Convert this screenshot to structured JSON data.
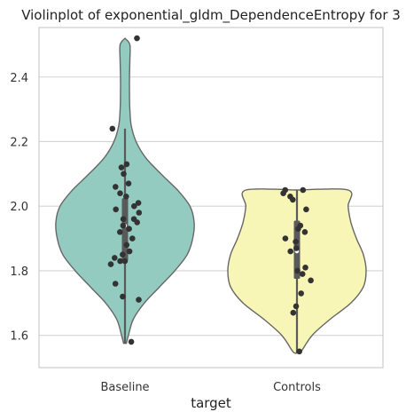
{
  "chart_data": {
    "type": "violin",
    "title": "Violinplot of exponential_gldm_DependenceEntropy for 3",
    "xlabel": "target",
    "ylabel": "",
    "categories": [
      "Baseline",
      "Controls"
    ],
    "ylim": [
      1.5,
      2.6
    ],
    "yticks": [
      1.6,
      1.8,
      2.0,
      2.2,
      2.4
    ],
    "yticklabels": [
      "1.6",
      "1.8",
      "2.0",
      "2.2",
      "2.4"
    ],
    "grid": "horizontal",
    "colors": {
      "Baseline": "#93cbc1",
      "Controls": "#f8f6b7",
      "outline": "#666666",
      "points": "#333333",
      "box": "#5a5a5a",
      "grid": "#d4d4d4",
      "frame": "#cccccc"
    },
    "series": [
      {
        "category": "Baseline",
        "points": [
          2.52,
          2.24,
          2.13,
          2.12,
          2.1,
          2.07,
          2.06,
          2.04,
          2.03,
          2.01,
          2.0,
          1.99,
          1.98,
          1.96,
          1.96,
          1.95,
          1.94,
          1.93,
          1.92,
          1.9,
          1.88,
          1.86,
          1.85,
          1.84,
          1.83,
          1.83,
          1.82,
          1.76,
          1.72,
          1.71,
          1.58
        ],
        "box": {
          "whisker_low": 1.575,
          "q1": 1.83,
          "median": 1.94,
          "q3": 2.025,
          "whisker_high": 2.24
        },
        "density": [
          [
            1.575,
            0.02
          ],
          [
            1.6,
            0.05
          ],
          [
            1.65,
            0.12
          ],
          [
            1.7,
            0.28
          ],
          [
            1.75,
            0.5
          ],
          [
            1.8,
            0.72
          ],
          [
            1.85,
            0.9
          ],
          [
            1.9,
            0.98
          ],
          [
            1.95,
            1.0
          ],
          [
            2.0,
            0.94
          ],
          [
            2.05,
            0.76
          ],
          [
            2.1,
            0.52
          ],
          [
            2.15,
            0.3
          ],
          [
            2.2,
            0.16
          ],
          [
            2.25,
            0.09
          ],
          [
            2.3,
            0.07
          ],
          [
            2.35,
            0.065
          ],
          [
            2.4,
            0.065
          ],
          [
            2.45,
            0.07
          ],
          [
            2.5,
            0.07
          ],
          [
            2.52,
            0.0
          ]
        ]
      },
      {
        "category": "Controls",
        "points": [
          2.05,
          2.05,
          2.04,
          2.03,
          2.02,
          1.99,
          1.94,
          1.93,
          1.92,
          1.9,
          1.89,
          1.87,
          1.86,
          1.81,
          1.8,
          1.79,
          1.77,
          1.73,
          1.69,
          1.67,
          1.55
        ],
        "box": {
          "whisker_low": 1.545,
          "q1": 1.775,
          "median": 1.86,
          "q3": 1.955,
          "whisker_high": 2.05
        },
        "density": [
          [
            1.545,
            0.0
          ],
          [
            1.55,
            0.06
          ],
          [
            1.6,
            0.22
          ],
          [
            1.65,
            0.48
          ],
          [
            1.7,
            0.78
          ],
          [
            1.75,
            0.96
          ],
          [
            1.8,
            1.0
          ],
          [
            1.85,
            0.96
          ],
          [
            1.9,
            0.86
          ],
          [
            1.95,
            0.78
          ],
          [
            2.0,
            0.74
          ],
          [
            2.05,
            0.74
          ],
          [
            2.05,
            0.0
          ]
        ]
      }
    ]
  }
}
